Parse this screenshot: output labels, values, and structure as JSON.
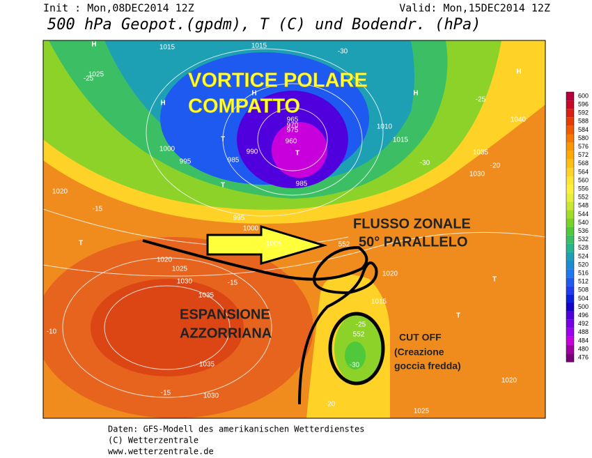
{
  "header": {
    "init": "Init : Mon,08DEC2014 12Z",
    "valid": "Valid: Mon,15DEC2014 12Z",
    "title": "500 hPa Geopot.(gpdm), T (C) und Bodendr. (hPa)"
  },
  "annotations": {
    "vortex": [
      "VORTICE POLARE",
      "COMPATTO"
    ],
    "flow": [
      "FLUSSO ZONALE",
      "50° PARALLELO"
    ],
    "azores": [
      "ESPANSIONE",
      "AZZORRIANA"
    ],
    "cutoff": [
      "CUT OFF",
      "(Creazione",
      "goccia fredda)"
    ]
  },
  "map_labels": [
    "1015",
    "1015",
    "1025",
    "1000",
    "995",
    "985",
    "990",
    "985",
    "960",
    "965",
    "970",
    "975",
    "1010",
    "1015",
    "1040",
    "1035",
    "1030",
    "1020",
    "1005",
    "1000",
    "995",
    "1020",
    "1025",
    "1030",
    "1035",
    "1035",
    "1030",
    "1015",
    "1020",
    "1025",
    "1020",
    "-30",
    "-25",
    "-25",
    "-30",
    "-15",
    "-15",
    "-10",
    "-15",
    "-20",
    "-25",
    "-30",
    "-20",
    "552",
    "552",
    "H",
    "H",
    "H",
    "H",
    "H",
    "T",
    "T",
    "T",
    "T",
    "T",
    "T"
  ],
  "legend": {
    "values": [
      600,
      596,
      592,
      588,
      584,
      580,
      576,
      572,
      568,
      564,
      560,
      556,
      552,
      548,
      544,
      540,
      536,
      532,
      528,
      524,
      520,
      516,
      512,
      508,
      504,
      500,
      496,
      492,
      488,
      484,
      480,
      476
    ],
    "colors": [
      "#b4003c",
      "#c80a28",
      "#dc1e14",
      "#e63c00",
      "#f05a00",
      "#f57800",
      "#fa9600",
      "#ffaa00",
      "#ffbe14",
      "#ffd228",
      "#ffe632",
      "#fff03c",
      "#e6f03c",
      "#c8e632",
      "#a0dc28",
      "#78d228",
      "#50c83c",
      "#3cbe64",
      "#28b48c",
      "#1ea0b4",
      "#1e8cd2",
      "#1e78f0",
      "#1e5af0",
      "#1e3cf0",
      "#0a1edc",
      "#1400c8",
      "#5000dc",
      "#7800e6",
      "#a000f0",
      "#c800dc",
      "#a000a0",
      "#780078"
    ]
  },
  "footer": [
    "Daten: GFS-Modell des amerikanischen Wetterdienstes",
    "(C) Wetterzentrale",
    "www.wetterzentrale.de"
  ]
}
